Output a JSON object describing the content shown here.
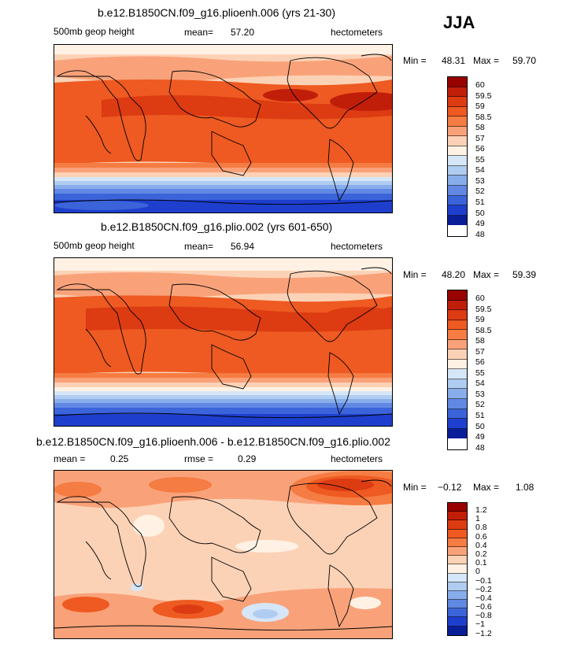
{
  "season": "JJA",
  "panels": [
    {
      "title": "b.e12.B1850CN.f09_g16.plioenh.006 (yrs 21-30)",
      "variable": "500mb geop height",
      "mean_label": "mean=",
      "mean_value": "57.20",
      "units": "hectometers",
      "min_label": "Min =",
      "min_value": "48.31",
      "max_label": "Max =",
      "max_value": "59.70",
      "levels": [
        "60",
        "59.5",
        "59",
        "58.5",
        "58",
        "57",
        "56",
        "55",
        "54",
        "53",
        "52",
        "51",
        "50",
        "49",
        "48"
      ],
      "colors": [
        "#990000",
        "#c11e0a",
        "#dd3b12",
        "#ee5a21",
        "#f57c42",
        "#f9a27a",
        "#fcd2b6",
        "#fff2e4",
        "#d6e6f9",
        "#b0ccf1",
        "#88adeb",
        "#6188e3",
        "#3b63da",
        "#1e3fcd",
        "#0a1d99"
      ]
    },
    {
      "title": "b.e12.B1850CN.f09_g16.plio.002 (yrs 601-650)",
      "variable": "500mb geop height",
      "mean_label": "mean=",
      "mean_value": "56.94",
      "units": "hectometers",
      "min_label": "Min =",
      "min_value": "48.20",
      "max_label": "Max =",
      "max_value": "59.39",
      "levels": [
        "60",
        "59.5",
        "59",
        "58.5",
        "58",
        "57",
        "56",
        "55",
        "54",
        "53",
        "52",
        "51",
        "50",
        "49",
        "48"
      ],
      "colors": [
        "#990000",
        "#c11e0a",
        "#dd3b12",
        "#ee5a21",
        "#f57c42",
        "#f9a27a",
        "#fcd2b6",
        "#fff2e4",
        "#d6e6f9",
        "#b0ccf1",
        "#88adeb",
        "#6188e3",
        "#3b63da",
        "#1e3fcd",
        "#0a1d99"
      ]
    },
    {
      "title": "b.e12.B1850CN.f09_g16.plioenh.006 - b.e12.B1850CN.f09_g16.plio.002",
      "mean_label": "mean =",
      "mean_value": "0.25",
      "rmse_label": "rmse =",
      "rmse_value": "0.29",
      "units": "hectometers",
      "min_label": "Min =",
      "min_value": "−0.12",
      "max_label": "Max =",
      "max_value": "1.08",
      "levels": [
        "1.2",
        "1",
        "0.8",
        "0.6",
        "0.4",
        "0.2",
        "0.1",
        "0",
        "−0.1",
        "−0.2",
        "−0.4",
        "−0.6",
        "−0.8",
        "−1",
        "−1.2"
      ],
      "colors": [
        "#990000",
        "#c11e0a",
        "#dd3b12",
        "#ee5a21",
        "#f57c42",
        "#f9a27a",
        "#fcd2b6",
        "#fff2e4",
        "#d6e6f9",
        "#b0ccf1",
        "#88adeb",
        "#6188e3",
        "#3b63da",
        "#1e3fcd",
        "#0a1d99"
      ]
    }
  ]
}
